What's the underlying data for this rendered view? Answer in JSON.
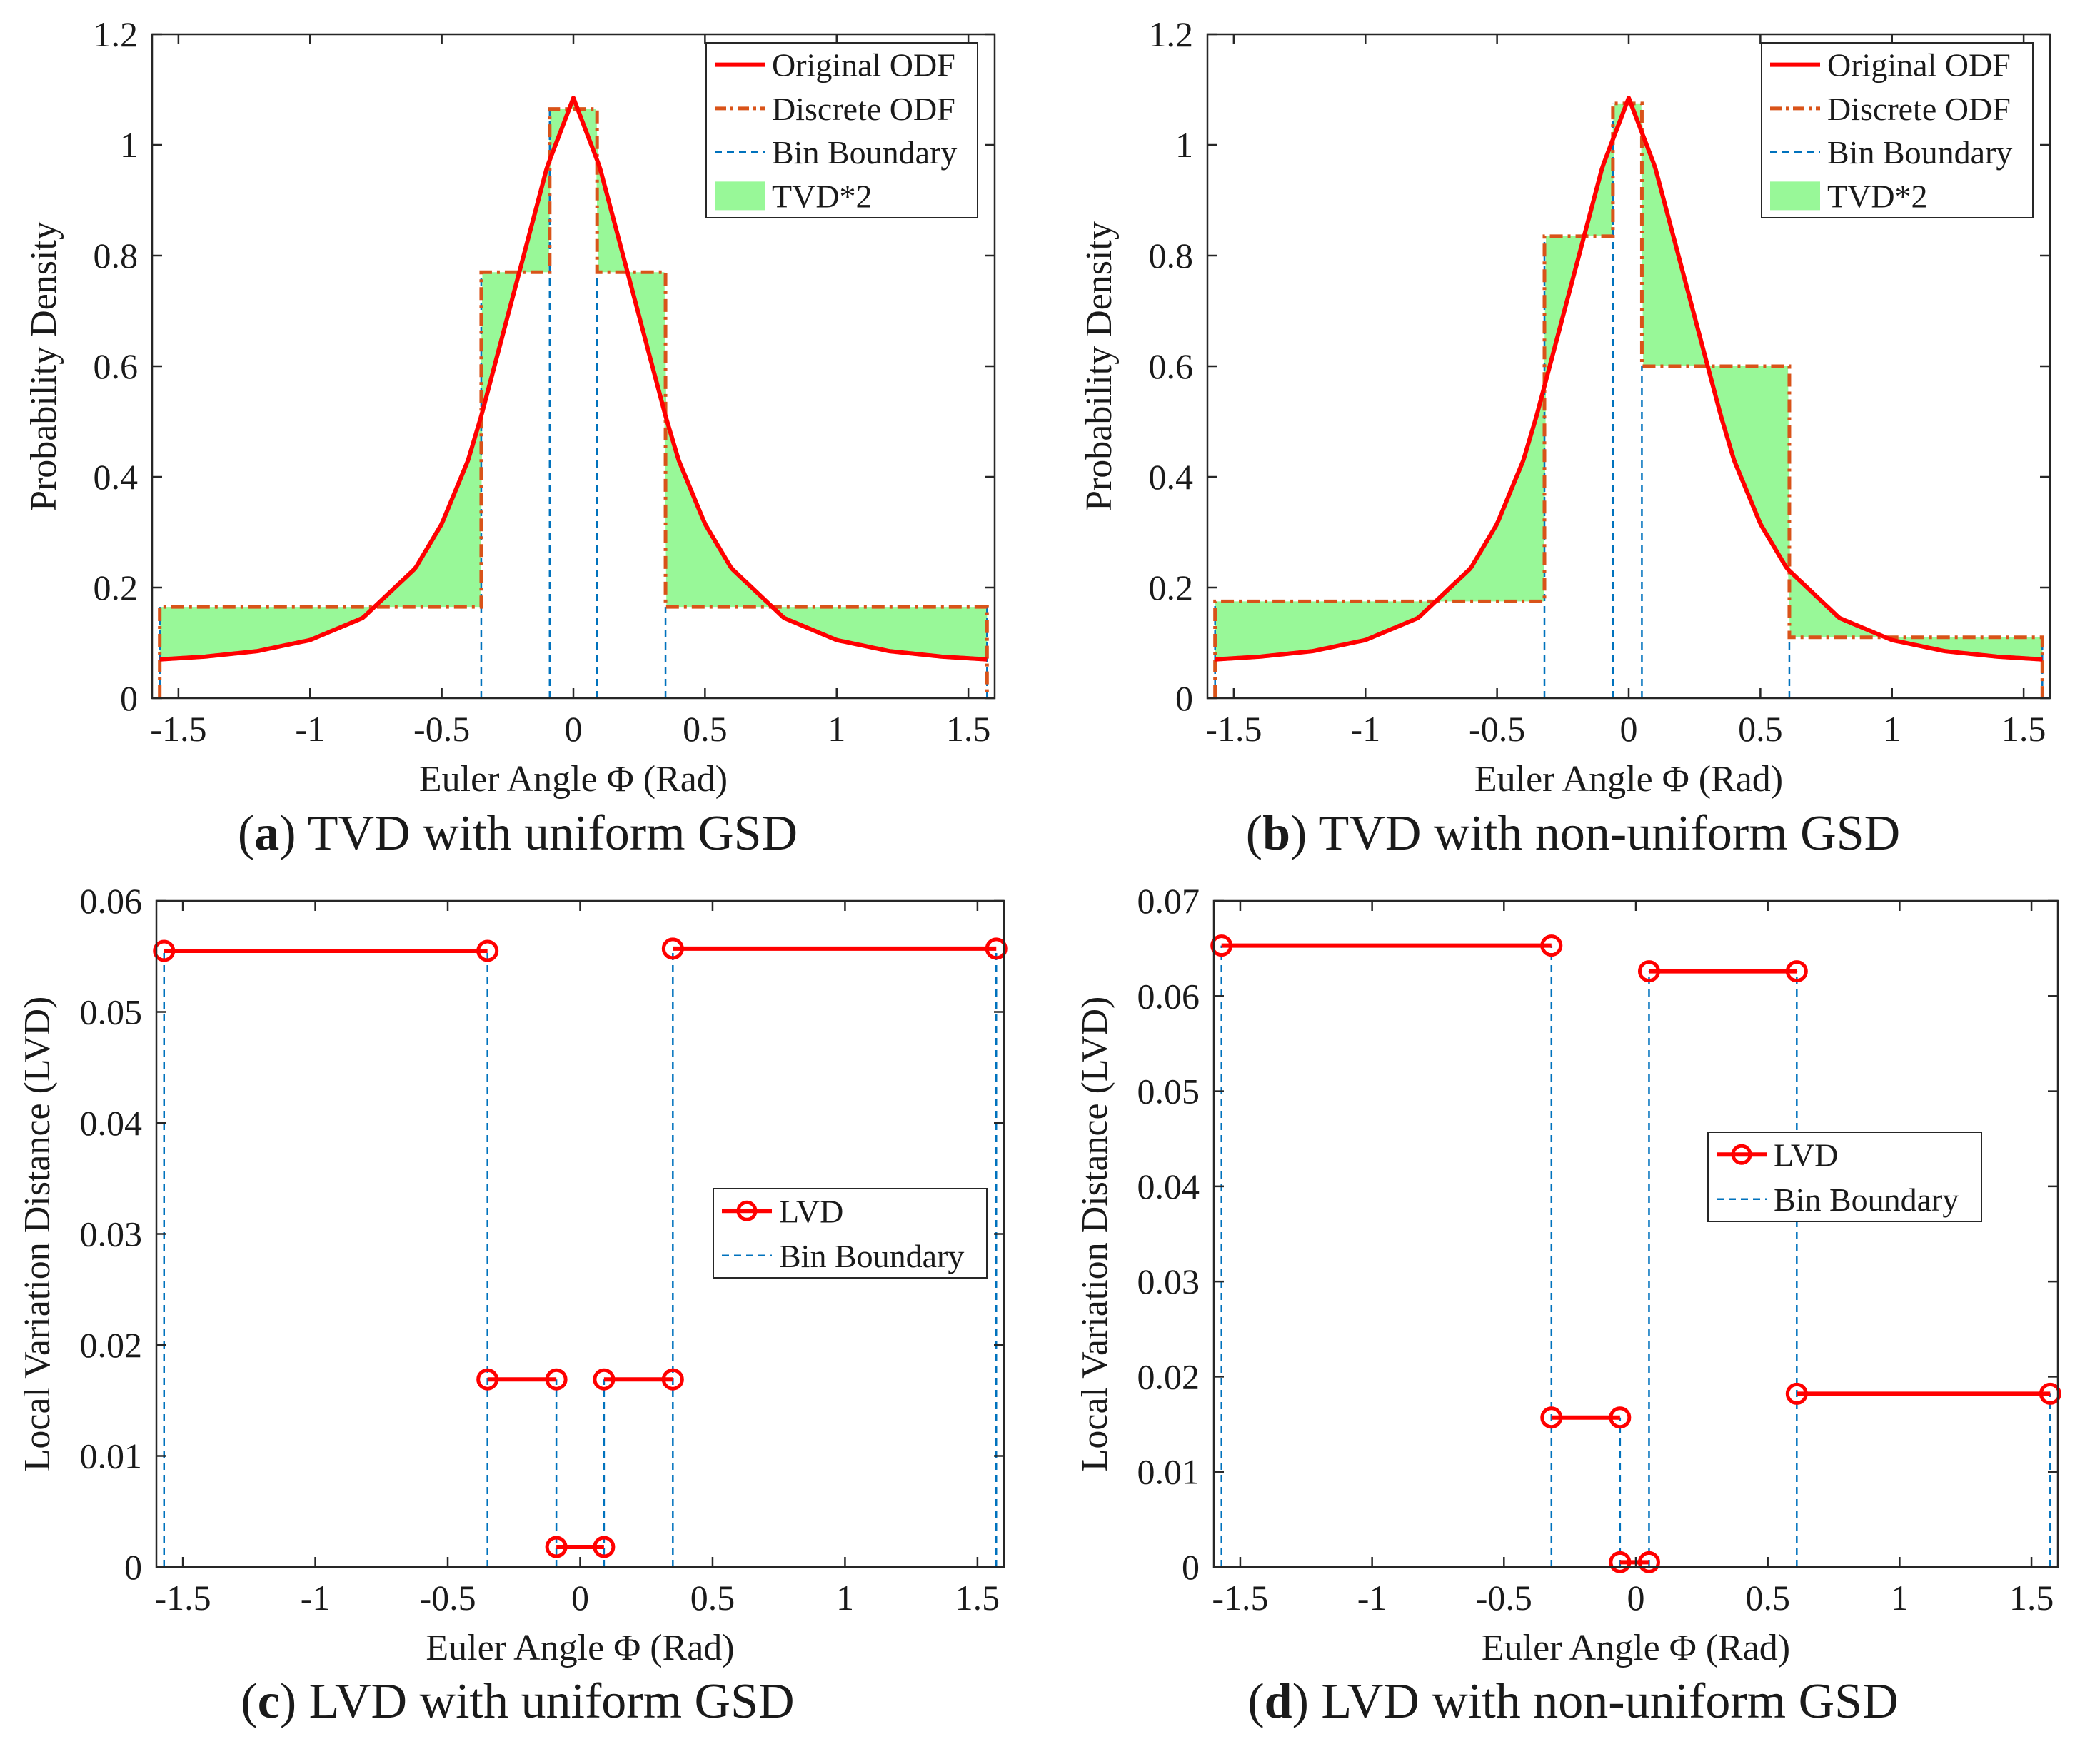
{
  "colors": {
    "odf": "#ff0000",
    "discrete": "#d95319",
    "boundary": "#0072bd",
    "tvd_fill": "#98f898",
    "axis": "#262626"
  },
  "chart_data": [
    {
      "id": "a",
      "type": "line",
      "caption_letter": "a",
      "caption_text": " TVD with uniform GSD",
      "xlabel": "Euler Angle Φ (Rad)",
      "ylabel": "Probability Density",
      "xlim": [
        -1.6,
        1.6
      ],
      "ylim": [
        0,
        1.2
      ],
      "xticks": [
        -1.5,
        -1,
        -0.5,
        0,
        0.5,
        1,
        1.5
      ],
      "xtick_labels": [
        "-1.5",
        "-1",
        "-0.5",
        "0",
        "0.5",
        "1",
        "1.5"
      ],
      "yticks": [
        0,
        0.2,
        0.4,
        0.6,
        0.8,
        1,
        1.2
      ],
      "ytick_labels": [
        "0",
        "0.2",
        "0.4",
        "0.6",
        "0.8",
        "1",
        "1.2"
      ],
      "legend": [
        "Original ODF",
        "Discrete ODF",
        "Bin Boundary",
        "TVD*2"
      ],
      "legend_position": "top-right",
      "grid": false,
      "series": [
        {
          "name": "Original ODF",
          "x": [
            -1.571,
            -1.4,
            -1.2,
            -1.0,
            -0.8,
            -0.6,
            -0.5,
            -0.4,
            -0.35,
            -0.3,
            -0.2,
            -0.1,
            0,
            0.1,
            0.2,
            0.3,
            0.35,
            0.4,
            0.5,
            0.6,
            0.8,
            1.0,
            1.2,
            1.4,
            1.571
          ],
          "y": [
            0.07,
            0.075,
            0.085,
            0.105,
            0.145,
            0.235,
            0.315,
            0.43,
            0.51,
            0.6,
            0.78,
            0.96,
            1.085,
            0.96,
            0.78,
            0.6,
            0.51,
            0.43,
            0.315,
            0.235,
            0.145,
            0.105,
            0.085,
            0.075,
            0.07
          ]
        },
        {
          "name": "Discrete ODF",
          "bin_edges": [
            -1.571,
            -0.35,
            -0.09,
            0.09,
            0.35,
            1.571
          ],
          "values": [
            0.165,
            0.77,
            1.065,
            0.77,
            0.165
          ]
        },
        {
          "name": "Bin Boundary",
          "x": [
            -1.571,
            -0.35,
            -0.09,
            0.09,
            0.35,
            1.571
          ]
        }
      ]
    },
    {
      "id": "b",
      "type": "line",
      "caption_letter": "b",
      "caption_text": " TVD with non-uniform GSD",
      "xlabel": "Euler Angle Φ (Rad)",
      "ylabel": "Probability Density",
      "xlim": [
        -1.6,
        1.6
      ],
      "ylim": [
        0,
        1.2
      ],
      "xticks": [
        -1.5,
        -1,
        -0.5,
        0,
        0.5,
        1,
        1.5
      ],
      "xtick_labels": [
        "-1.5",
        "-1",
        "-0.5",
        "0",
        "0.5",
        "1",
        "1.5"
      ],
      "yticks": [
        0,
        0.2,
        0.4,
        0.6,
        0.8,
        1,
        1.2
      ],
      "ytick_labels": [
        "0",
        "0.2",
        "0.4",
        "0.6",
        "0.8",
        "1",
        "1.2"
      ],
      "legend": [
        "Original ODF",
        "Discrete ODF",
        "Bin Boundary",
        "TVD*2"
      ],
      "legend_position": "top-right",
      "grid": false,
      "series": [
        {
          "name": "Original ODF",
          "x": [
            -1.571,
            -1.4,
            -1.2,
            -1.0,
            -0.8,
            -0.6,
            -0.5,
            -0.4,
            -0.35,
            -0.3,
            -0.2,
            -0.1,
            0,
            0.1,
            0.2,
            0.3,
            0.35,
            0.4,
            0.5,
            0.6,
            0.8,
            1.0,
            1.2,
            1.4,
            1.571
          ],
          "y": [
            0.07,
            0.075,
            0.085,
            0.105,
            0.145,
            0.235,
            0.315,
            0.43,
            0.51,
            0.6,
            0.78,
            0.96,
            1.085,
            0.96,
            0.78,
            0.6,
            0.51,
            0.43,
            0.315,
            0.235,
            0.145,
            0.105,
            0.085,
            0.075,
            0.07
          ]
        },
        {
          "name": "Discrete ODF",
          "bin_edges": [
            -1.571,
            -0.32,
            -0.06,
            0.05,
            0.61,
            1.571
          ],
          "values": [
            0.175,
            0.835,
            1.075,
            0.6,
            0.11
          ]
        },
        {
          "name": "Bin Boundary",
          "x": [
            -1.571,
            -0.32,
            -0.06,
            0.05,
            0.61,
            1.571
          ]
        }
      ]
    },
    {
      "id": "c",
      "type": "line",
      "caption_letter": "c",
      "caption_text": " LVD with uniform GSD",
      "xlabel": "Euler Angle Φ (Rad)",
      "ylabel": "Local Variation Distance (LVD)",
      "xlim": [
        -1.6,
        1.6
      ],
      "ylim": [
        0,
        0.06
      ],
      "xticks": [
        -1.5,
        -1,
        -0.5,
        0,
        0.5,
        1,
        1.5
      ],
      "xtick_labels": [
        "-1.5",
        "-1",
        "-0.5",
        "0",
        "0.5",
        "1",
        "1.5"
      ],
      "yticks": [
        0,
        0.01,
        0.02,
        0.03,
        0.04,
        0.05,
        0.06
      ],
      "ytick_labels": [
        "0",
        "0.01",
        "0.02",
        "0.03",
        "0.04",
        "0.05",
        "0.06"
      ],
      "legend": [
        "LVD",
        "Bin Boundary"
      ],
      "legend_position": "middle-right",
      "grid": false,
      "series": [
        {
          "name": "LVD",
          "segments": [
            {
              "x": [
                -1.571,
                -0.35
              ],
              "y": 0.0555
            },
            {
              "x": [
                -0.35,
                -0.09
              ],
              "y": 0.0169
            },
            {
              "x": [
                -0.09,
                0.09
              ],
              "y": 0.0018
            },
            {
              "x": [
                0.09,
                0.35
              ],
              "y": 0.0169
            },
            {
              "x": [
                0.35,
                1.571
              ],
              "y": 0.0557
            }
          ]
        },
        {
          "name": "Bin Boundary",
          "x": [
            -1.571,
            -0.35,
            -0.09,
            0.09,
            0.35,
            1.571
          ]
        }
      ]
    },
    {
      "id": "d",
      "type": "line",
      "caption_letter": "d",
      "caption_text": " LVD with non-uniform GSD",
      "xlabel": "Euler Angle Φ (Rad)",
      "ylabel": "Local Variation Distance (LVD)",
      "xlim": [
        -1.6,
        1.6
      ],
      "ylim": [
        0,
        0.07
      ],
      "xticks": [
        -1.5,
        -1,
        -0.5,
        0,
        0.5,
        1,
        1.5
      ],
      "xtick_labels": [
        "-1.5",
        "-1",
        "-0.5",
        "0",
        "0.5",
        "1",
        "1.5"
      ],
      "yticks": [
        0,
        0.01,
        0.02,
        0.03,
        0.04,
        0.05,
        0.06,
        0.07
      ],
      "ytick_labels": [
        "0",
        "0.01",
        "0.02",
        "0.03",
        "0.04",
        "0.05",
        "0.06",
        "0.07"
      ],
      "legend": [
        "LVD",
        "Bin Boundary"
      ],
      "legend_position": "middle-right",
      "grid": false,
      "series": [
        {
          "name": "LVD",
          "segments": [
            {
              "x": [
                -1.571,
                -0.32
              ],
              "y": 0.0653
            },
            {
              "x": [
                -0.32,
                -0.06
              ],
              "y": 0.0157
            },
            {
              "x": [
                -0.06,
                0.05
              ],
              "y": 0.0005
            },
            {
              "x": [
                0.05,
                0.61
              ],
              "y": 0.0626
            },
            {
              "x": [
                0.61,
                1.571
              ],
              "y": 0.0182
            }
          ]
        },
        {
          "name": "Bin Boundary",
          "x": [
            -1.571,
            -0.32,
            -0.06,
            0.05,
            0.61,
            1.571
          ]
        }
      ]
    }
  ]
}
